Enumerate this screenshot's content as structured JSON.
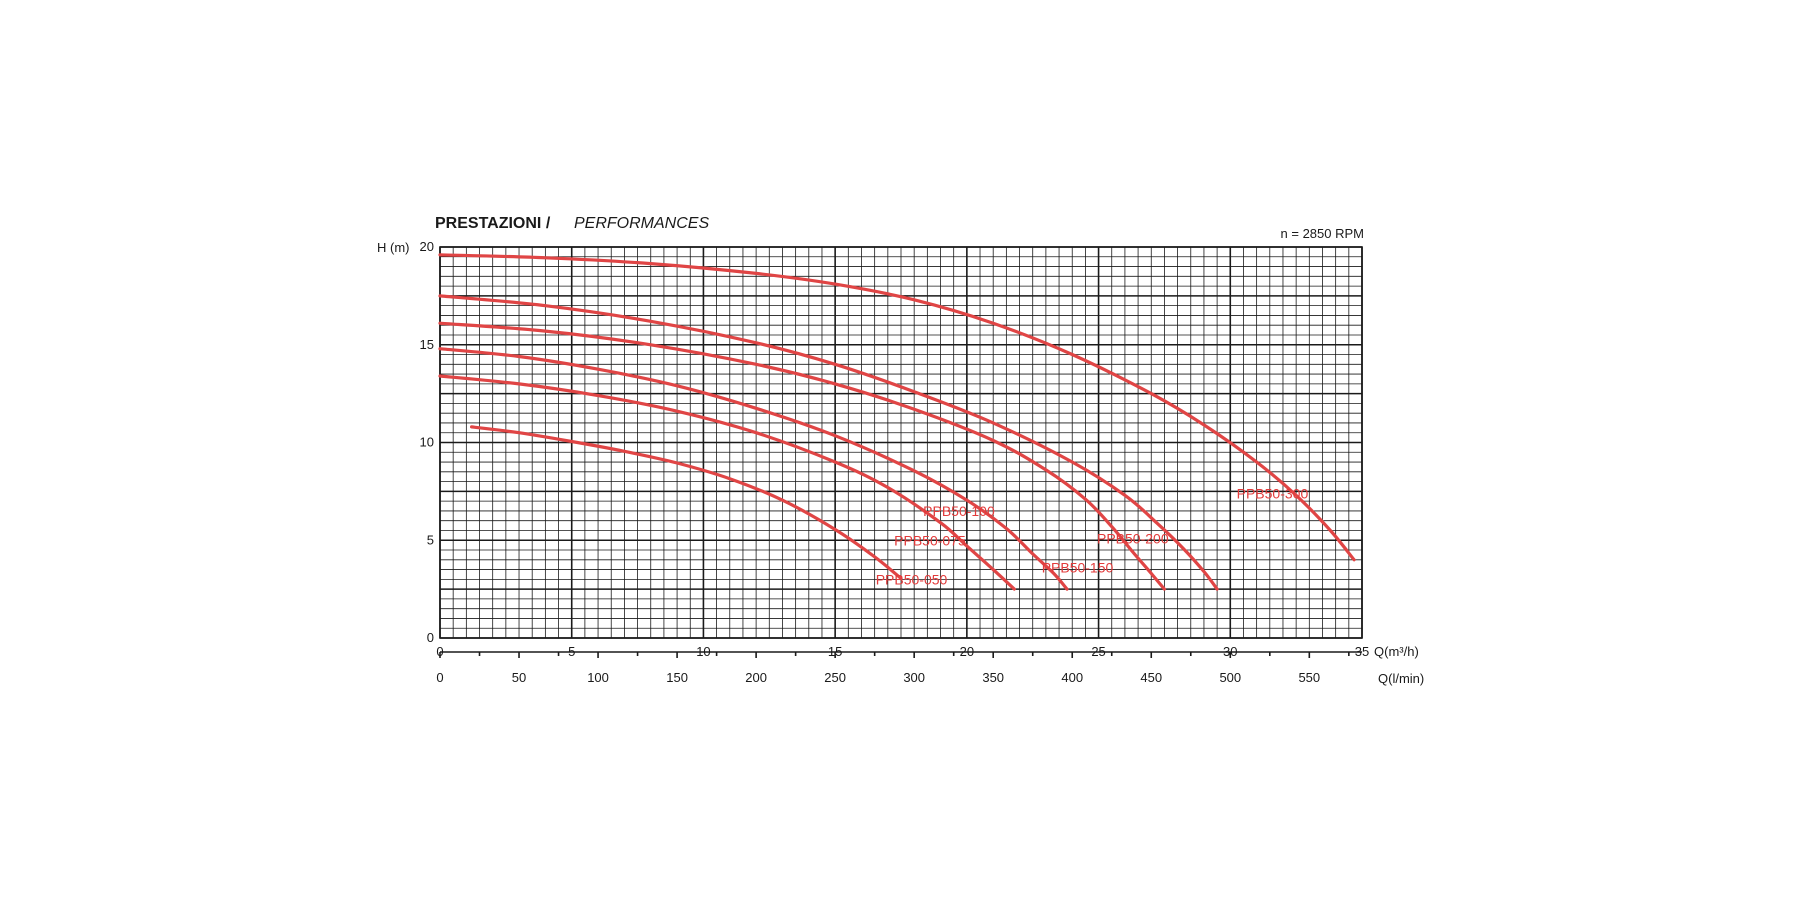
{
  "title_bold": "PRESTAZIONI /",
  "title_italic": "PERFORMANCES",
  "rpm_note": "n = 2850 RPM",
  "chart_data": {
    "type": "line",
    "ylabel": "H (m)",
    "xlabel": "Q(m³/h)",
    "x2label": "Q(l/min)",
    "xlim": [
      0,
      35
    ],
    "ylim": [
      0,
      20
    ],
    "x2lim_lpm": [
      0,
      583.33
    ],
    "x_ticks": [
      0,
      5,
      10,
      15,
      20,
      25,
      30,
      35
    ],
    "y_ticks": [
      0,
      5,
      10,
      15,
      20
    ],
    "x2_ticks": [
      0,
      50,
      100,
      150,
      200,
      250,
      300,
      350,
      400,
      450,
      500,
      550
    ],
    "grid": true,
    "series": [
      {
        "name": "PPB50-050",
        "points": [
          [
            1.2,
            10.8
          ],
          [
            3,
            10.5
          ],
          [
            5,
            10.05
          ],
          [
            7,
            9.55
          ],
          [
            9,
            8.95
          ],
          [
            11,
            8.15
          ],
          [
            13,
            7.05
          ],
          [
            15,
            5.55
          ],
          [
            16.5,
            4.15
          ],
          [
            17.5,
            3.05
          ]
        ]
      },
      {
        "name": "PPB50-075",
        "points": [
          [
            0,
            13.4
          ],
          [
            3,
            13.0
          ],
          [
            6,
            12.4
          ],
          [
            9,
            11.6
          ],
          [
            12,
            10.5
          ],
          [
            15,
            9.0
          ],
          [
            17,
            7.7
          ],
          [
            19,
            5.9
          ],
          [
            20,
            4.7
          ],
          [
            21,
            3.5
          ],
          [
            21.8,
            2.5
          ]
        ]
      },
      {
        "name": "PPB50-100",
        "points": [
          [
            0,
            14.8
          ],
          [
            3,
            14.4
          ],
          [
            6,
            13.75
          ],
          [
            9,
            12.9
          ],
          [
            12,
            11.75
          ],
          [
            15,
            10.35
          ],
          [
            18,
            8.55
          ],
          [
            20,
            7.05
          ],
          [
            21.5,
            5.6
          ],
          [
            22.5,
            4.3
          ],
          [
            23.3,
            3.3
          ],
          [
            23.8,
            2.5
          ]
        ]
      },
      {
        "name": "PPB50-150",
        "points": [
          [
            0,
            16.1
          ],
          [
            4,
            15.7
          ],
          [
            8,
            15.0
          ],
          [
            12,
            14.0
          ],
          [
            15,
            13.0
          ],
          [
            18,
            11.7
          ],
          [
            21,
            10.1
          ],
          [
            23,
            8.6
          ],
          [
            24.5,
            7.1
          ],
          [
            25.5,
            5.7
          ],
          [
            26.3,
            4.4
          ],
          [
            27,
            3.3
          ],
          [
            27.5,
            2.5
          ]
        ]
      },
      {
        "name": "PPB50-200",
        "points": [
          [
            0,
            17.5
          ],
          [
            4,
            17.0
          ],
          [
            8,
            16.2
          ],
          [
            12,
            15.1
          ],
          [
            15,
            14.0
          ],
          [
            18,
            12.6
          ],
          [
            21,
            11.0
          ],
          [
            24,
            9.0
          ],
          [
            26,
            7.3
          ],
          [
            27.2,
            5.9
          ],
          [
            28.2,
            4.6
          ],
          [
            29,
            3.4
          ],
          [
            29.5,
            2.5
          ]
        ]
      },
      {
        "name": "PPB50-300",
        "points": [
          [
            0,
            19.6
          ],
          [
            4,
            19.45
          ],
          [
            8,
            19.15
          ],
          [
            12,
            18.65
          ],
          [
            15,
            18.1
          ],
          [
            18,
            17.3
          ],
          [
            21,
            16.1
          ],
          [
            24,
            14.5
          ],
          [
            27,
            12.5
          ],
          [
            29,
            10.9
          ],
          [
            31,
            9.0
          ],
          [
            32.5,
            7.3
          ],
          [
            33.8,
            5.5
          ],
          [
            34.7,
            4.0
          ]
        ]
      }
    ]
  }
}
